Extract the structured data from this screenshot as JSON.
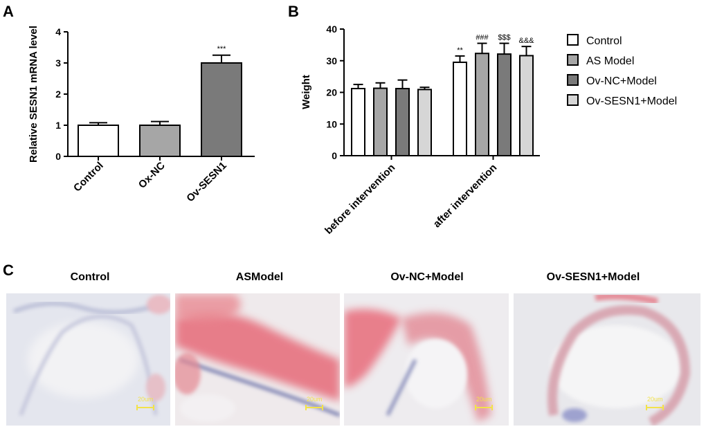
{
  "panels": {
    "a": "A",
    "b": "B",
    "c": "C"
  },
  "chart_data": [
    {
      "type": "bar",
      "categories": [
        "Control",
        "Ox-NC",
        "Ov-SESN1"
      ],
      "values": [
        1.0,
        1.0,
        3.0
      ],
      "errors": [
        0.08,
        0.12,
        0.25
      ],
      "significance": [
        "",
        "",
        "***"
      ],
      "ylabel": "Relative SESN1 mRNA level",
      "ylim": [
        0,
        4
      ],
      "yticks": [
        0,
        1,
        2,
        3,
        4
      ],
      "colors": [
        "#ffffff",
        "#a6a6a6",
        "#7a7a7a"
      ]
    },
    {
      "type": "bar",
      "categories": [
        "before intervention",
        "after  intervention"
      ],
      "series": [
        {
          "name": "Control",
          "values": [
            21.2,
            29.5
          ],
          "errors": [
            1.3,
            2.0
          ],
          "significance": [
            "",
            "**"
          ],
          "color": "#ffffff"
        },
        {
          "name": "AS Model",
          "values": [
            21.3,
            32.3
          ],
          "errors": [
            1.7,
            3.2
          ],
          "significance": [
            "",
            "###"
          ],
          "color": "#a6a6a6"
        },
        {
          "name": "Ov-NC+Model",
          "values": [
            21.2,
            32.1
          ],
          "errors": [
            2.7,
            3.4
          ],
          "significance": [
            "",
            "$$$"
          ],
          "color": "#7a7a7a"
        },
        {
          "name": "Ov-SESN1+Model",
          "values": [
            20.9,
            31.6
          ],
          "errors": [
            0.7,
            2.9
          ],
          "significance": [
            "",
            "&&&"
          ],
          "color": "#d6d6d6"
        }
      ],
      "ylabel": "Weight",
      "ylim": [
        0,
        40
      ],
      "yticks": [
        0,
        10,
        20,
        30,
        40
      ],
      "legend": "right"
    }
  ],
  "images": [
    {
      "title": "Control",
      "scale": "20um"
    },
    {
      "title": "ASModel",
      "scale": "20um"
    },
    {
      "title": "Ov-NC+Model",
      "scale": "20um"
    },
    {
      "title": "Ov-SESN1+Model",
      "scale": "20um"
    }
  ]
}
